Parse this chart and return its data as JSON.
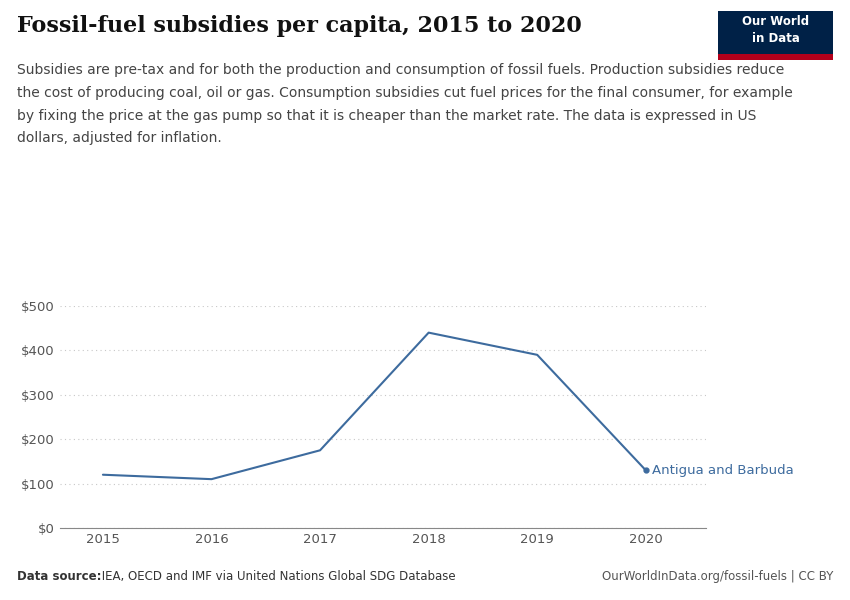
{
  "title": "Fossil-fuel subsidies per capita, 2015 to 2020",
  "subtitle_lines": [
    "Subsidies are pre-tax and for both the production and consumption of fossil fuels. Production subsidies reduce",
    "the cost of producing coal, oil or gas. Consumption subsidies cut fuel prices for the final consumer, for example",
    "by fixing the price at the gas pump so that it is cheaper than the market rate. The data is expressed in US",
    "dollars, adjusted for inflation."
  ],
  "years": [
    2015,
    2016,
    2017,
    2018,
    2019,
    2020
  ],
  "values": [
    120,
    110,
    175,
    440,
    390,
    130
  ],
  "line_color": "#3d6b9e",
  "label": "Antigua and Barbuda",
  "label_color": "#3d6b9e",
  "ylim": [
    0,
    500
  ],
  "yticks": [
    0,
    100,
    200,
    300,
    400,
    500
  ],
  "ytick_labels": [
    "$0",
    "$100",
    "$200",
    "$300",
    "$400",
    "$500"
  ],
  "background_color": "#ffffff",
  "grid_color": "#c8c8c8",
  "title_fontsize": 16,
  "subtitle_fontsize": 10,
  "data_source_bold": "Data source:",
  "data_source_rest": " IEA, OECD and IMF via United Nations Global SDG Database",
  "url": "OurWorldInData.org/fossil-fuels | CC BY",
  "owid_logo_bg": "#002147",
  "owid_logo_red": "#b3001b",
  "owid_logo_text": "Our World\nin Data"
}
